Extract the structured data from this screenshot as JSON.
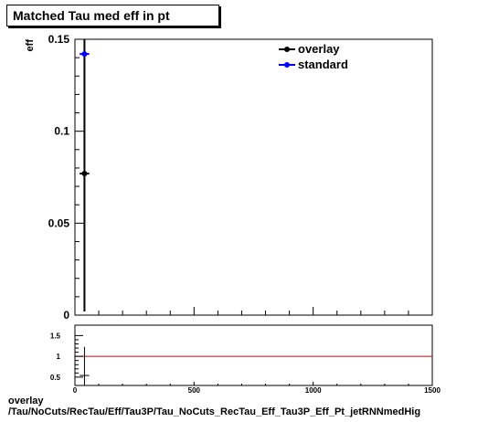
{
  "title": "Matched Tau med eff in pt",
  "footer": {
    "line1": "overlay",
    "line2": "/Tau/NoCuts/RecTau/Eff/Tau3P/Tau_NoCuts_RecTau_Eff_Tau3P_Eff_Pt_jetRNNmedHig"
  },
  "colors": {
    "overlay": "#000000",
    "standard": "#0000ff",
    "ratio_line": "#cc0000"
  },
  "chart_data": [
    {
      "type": "scatter",
      "panel": "main",
      "title": "Matched Tau med eff in pt",
      "ylabel": "eff",
      "xlim": [
        0,
        1500
      ],
      "ylim": [
        0,
        0.15
      ],
      "y_ticks": [
        0,
        0.05,
        0.1,
        0.15
      ],
      "y_tick_labels": [
        "0",
        "0.05",
        "0.1",
        "0.15"
      ],
      "legend_position": "top-right",
      "series": [
        {
          "name": "overlay",
          "color": "#000000",
          "points": [
            {
              "x": 40,
              "y": 0.077,
              "xerr": 20,
              "ylow": 0.002,
              "yhigh": 0.15
            }
          ]
        },
        {
          "name": "standard",
          "color": "#0000ff",
          "points": [
            {
              "x": 40,
              "y": 0.142,
              "xerr": 20,
              "ylow": 0.142,
              "yhigh": 0.142
            }
          ]
        }
      ]
    },
    {
      "type": "scatter",
      "panel": "ratio",
      "xlim": [
        0,
        1500
      ],
      "ylim": [
        0.3,
        1.75
      ],
      "y_ticks": [
        0.5,
        1,
        1.5
      ],
      "y_tick_labels": [
        "0.5",
        "1",
        "1.5"
      ],
      "x_ticks": [
        0,
        500,
        1000,
        1500
      ],
      "x_tick_labels": [
        "0",
        "500",
        "1000",
        "1500"
      ],
      "reference_line": 1,
      "points": [
        {
          "x": 40,
          "y": 0.54,
          "xerr": 20,
          "ylow": 0.3,
          "yhigh": 1.23
        }
      ]
    }
  ]
}
